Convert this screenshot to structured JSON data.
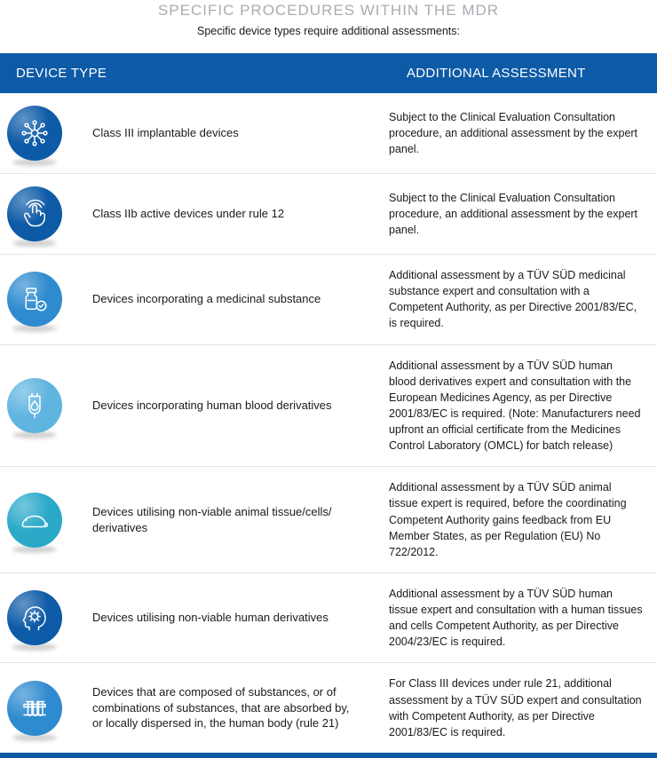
{
  "title": "SPECIFIC PROCEDURES WITHIN THE MDR",
  "subtitle": "Specific device types require additional assessments:",
  "header": {
    "col1": "DEVICE TYPE",
    "col2": "ADDITIONAL ASSESSMENT"
  },
  "icon_colors": {
    "dark": "#0d5aa7",
    "mid": "#2e8bcf",
    "light": "#5fb4e0",
    "cyan": "#2aa9c9"
  },
  "rows": [
    {
      "icon": "network",
      "iconColor": "dark",
      "deviceType": "Class III implantable devices",
      "assessment": "Subject to the Clinical Evaluation Consultation procedure, an additional assessment by the expert panel."
    },
    {
      "icon": "touch",
      "iconColor": "dark",
      "deviceType": "Class IIb active devices under rule 12",
      "assessment": "Subject to the Clinical Evaluation Consultation procedure, an additional assessment by the expert panel."
    },
    {
      "icon": "medicine",
      "iconColor": "mid",
      "deviceType": "Devices incorporating a medicinal substance",
      "assessment": "Additional assessment by a TÜV SÜD medicinal substance expert and consultation with a Competent Authority, as per Directive 2001/83/EC, is required."
    },
    {
      "icon": "blood",
      "iconColor": "light",
      "deviceType": "Devices incorporating human blood derivatives",
      "assessment": "Additional assessment by a TÜV SÜD human blood derivatives expert and consultation with the European Medicines Agency, as per Directive 2001/83/EC is required. (Note: Manufacturers need upfront an official certificate from the Medicines Control Laboratory (OMCL) for batch release)"
    },
    {
      "icon": "animal",
      "iconColor": "cyan",
      "deviceType": "Devices utilising non-viable animal tissue/cells/ derivatives",
      "assessment": "Additional assessment by a TÜV SÜD animal tissue expert is required, before the coordinating Competent Authority gains feedback from EU Member States, as per Regulation (EU) No 722/2012."
    },
    {
      "icon": "head",
      "iconColor": "dark",
      "deviceType": "Devices utilising non-viable human derivatives",
      "assessment": "Additional assessment by a TÜV SÜD human tissue expert and consultation with a human tissues and cells Competent Authority, as per Directive 2004/23/EC is required."
    },
    {
      "icon": "tubes",
      "iconColor": "mid",
      "deviceType": "Devices that are composed of substances, or of combinations of substances, that are absorbed by, or locally dispersed in, the human body (rule 21)",
      "assessment": "For Class III devices under rule 21, additional assessment by a TÜV SÜD expert and consultation with Competent Authority, as per Directive 2001/83/EC is required."
    }
  ]
}
